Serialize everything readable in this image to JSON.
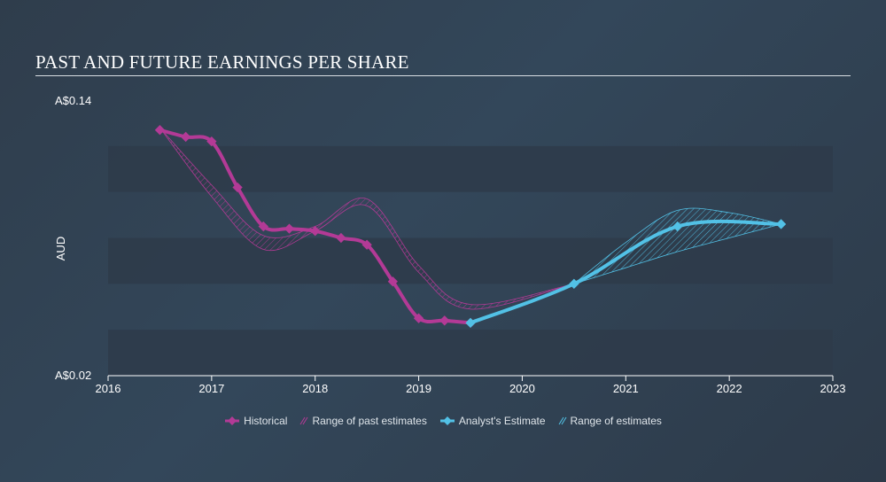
{
  "title": "PAST AND FUTURE EARNINGS PER SHARE",
  "colors": {
    "historical": "#b33a96",
    "estimate": "#52c1e6",
    "band_dark": "#2e3b4a",
    "band_light": "#364757"
  },
  "chart_data": {
    "type": "line",
    "title": "PAST AND FUTURE EARNINGS PER SHARE",
    "ylabel": "AUD",
    "xlabel": "",
    "xlim": [
      2016,
      2023
    ],
    "ylim": [
      0.02,
      0.14
    ],
    "y_tick_labels": [
      "A$0.14",
      "A$0.02"
    ],
    "x_ticks": [
      "2016",
      "2017",
      "2018",
      "2019",
      "2020",
      "2021",
      "2022",
      "2023"
    ],
    "grid": "horizontal bands",
    "legend_position": "bottom",
    "series": [
      {
        "name": "Historical",
        "x": [
          2016.5,
          2016.75,
          2017.0,
          2017.25,
          2017.5,
          2017.75,
          2018.0,
          2018.25,
          2018.5,
          2018.75,
          2019.0,
          2019.25,
          2019.5
        ],
        "y": [
          0.127,
          0.124,
          0.122,
          0.102,
          0.085,
          0.084,
          0.083,
          0.08,
          0.077,
          0.061,
          0.045,
          0.044,
          0.043
        ]
      },
      {
        "name": "Range of past estimates",
        "upper": {
          "x": [
            2016.5,
            2017.0,
            2017.5,
            2018.0,
            2018.5,
            2019.0,
            2019.5,
            2020.5
          ],
          "y": [
            0.128,
            0.103,
            0.081,
            0.085,
            0.097,
            0.068,
            0.051,
            0.06
          ]
        },
        "lower": {
          "x": [
            2016.5,
            2017.0,
            2017.5,
            2018.0,
            2018.5,
            2019.0,
            2019.5,
            2020.5
          ],
          "y": [
            0.128,
            0.098,
            0.075,
            0.083,
            0.094,
            0.065,
            0.049,
            0.06
          ]
        }
      },
      {
        "name": "Analyst's Estimate",
        "x": [
          2019.5,
          2020.5,
          2021.5,
          2022.5
        ],
        "y": [
          0.043,
          0.06,
          0.085,
          0.086
        ]
      },
      {
        "name": "Range of estimates",
        "upper": {
          "x": [
            2020.5,
            2021.0,
            2021.5,
            2022.0,
            2022.5
          ],
          "y": [
            0.06,
            0.078,
            0.092,
            0.091,
            0.086
          ]
        },
        "lower": {
          "x": [
            2020.5,
            2021.0,
            2021.5,
            2022.0,
            2022.5
          ],
          "y": [
            0.06,
            0.067,
            0.074,
            0.08,
            0.086
          ]
        }
      }
    ]
  }
}
